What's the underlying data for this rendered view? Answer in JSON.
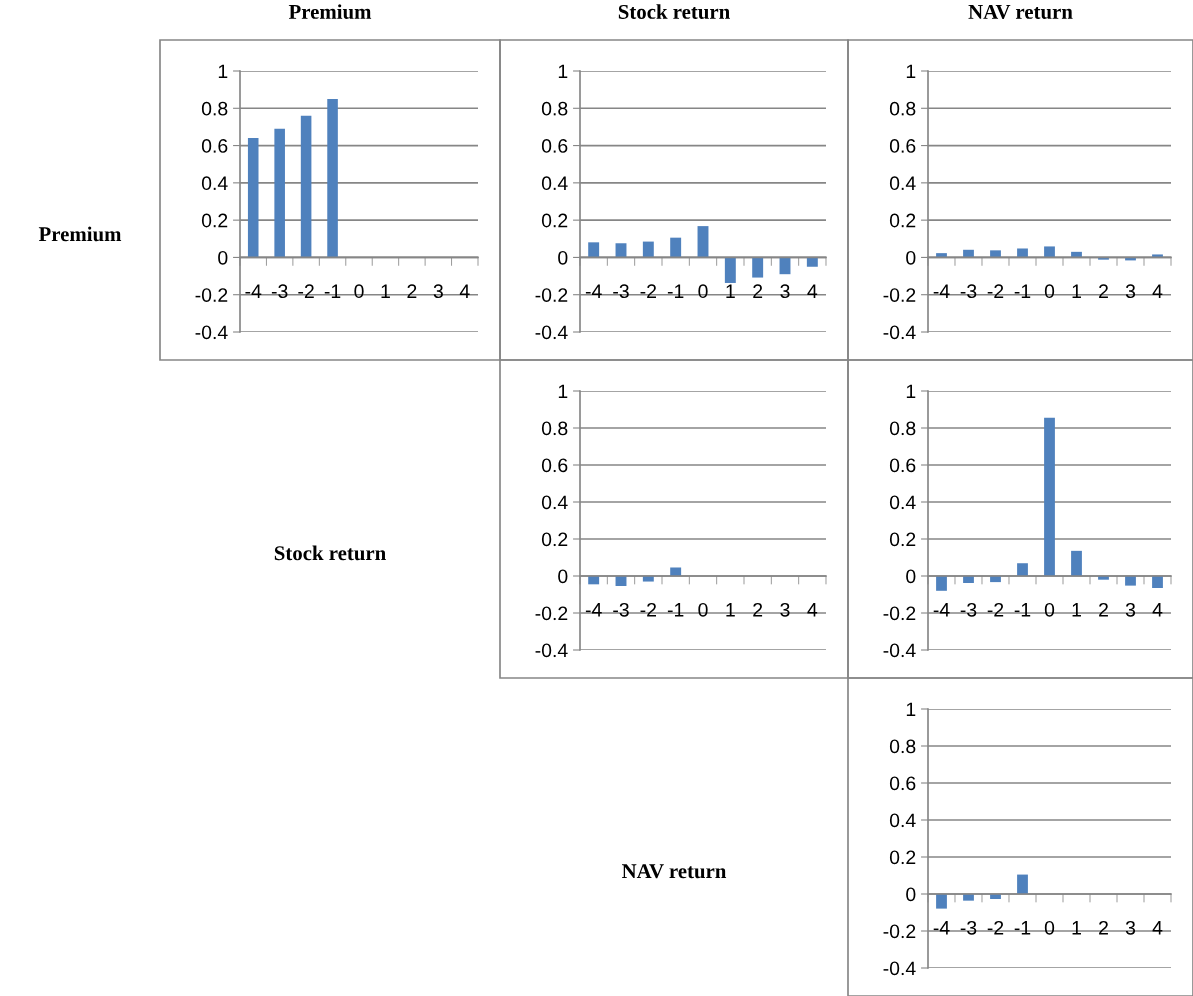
{
  "chart_data": [
    {
      "type": "bar",
      "title": "Premium",
      "ylabel": "Premium",
      "categories": [
        "-4",
        "-3",
        "-2",
        "-1",
        "0",
        "1",
        "2",
        "3",
        "4"
      ],
      "values": [
        0.64,
        0.69,
        0.76,
        0.85,
        null,
        null,
        null,
        null,
        null
      ],
      "color": "#4f81bd",
      "ylim": [
        -0.4,
        1
      ],
      "yticks": [
        -0.4,
        -0.2,
        0,
        0.2,
        0.4,
        0.6,
        0.8,
        1
      ],
      "grid": "y"
    },
    {
      "type": "bar",
      "title": "Stock return",
      "categories": [
        "-4",
        "-3",
        "-2",
        "-1",
        "0",
        "1",
        "2",
        "3",
        "4"
      ],
      "values": [
        0.081,
        0.076,
        0.085,
        0.106,
        0.168,
        -0.137,
        -0.108,
        -0.09,
        -0.05
      ],
      "color": "#4f81bd",
      "ylim": [
        -0.4,
        1
      ],
      "yticks": [
        -0.4,
        -0.2,
        0,
        0.2,
        0.4,
        0.6,
        0.8,
        1
      ],
      "grid": "y"
    },
    {
      "type": "bar",
      "title": "NAV return",
      "categories": [
        "-4",
        "-3",
        "-2",
        "-1",
        "0",
        "1",
        "2",
        "3",
        "4"
      ],
      "values": [
        0.023,
        0.041,
        0.038,
        0.048,
        0.059,
        0.03,
        -0.012,
        -0.016,
        0.016
      ],
      "color": "#4f81bd",
      "ylim": [
        -0.4,
        1
      ],
      "yticks": [
        -0.4,
        -0.2,
        0,
        0.2,
        0.4,
        0.6,
        0.8,
        1
      ],
      "grid": "y"
    },
    {
      "type": "bar",
      "ylabel": "Stock return",
      "categories": [
        "-4",
        "-3",
        "-2",
        "-1",
        "0",
        "1",
        "2",
        "3",
        "4"
      ],
      "values": [
        -0.045,
        -0.054,
        -0.03,
        0.046,
        null,
        null,
        null,
        null,
        null
      ],
      "color": "#4f81bd",
      "ylim": [
        -0.4,
        1
      ],
      "yticks": [
        -0.4,
        -0.2,
        0,
        0.2,
        0.4,
        0.6,
        0.8,
        1
      ],
      "grid": "y"
    },
    {
      "type": "bar",
      "categories": [
        "-4",
        "-3",
        "-2",
        "-1",
        "0",
        "1",
        "2",
        "3",
        "4"
      ],
      "values": [
        -0.08,
        -0.038,
        -0.033,
        0.069,
        0.856,
        0.136,
        -0.02,
        -0.052,
        -0.065
      ],
      "color": "#4f81bd",
      "ylim": [
        -0.4,
        1
      ],
      "yticks": [
        -0.4,
        -0.2,
        0,
        0.2,
        0.4,
        0.6,
        0.8,
        1
      ],
      "grid": "y"
    },
    {
      "type": "bar",
      "ylabel": "NAV return",
      "categories": [
        "-4",
        "-3",
        "-2",
        "-1",
        "0",
        "1",
        "2",
        "3",
        "4"
      ],
      "values": [
        -0.079,
        -0.036,
        -0.027,
        0.105,
        null,
        null,
        null,
        null,
        null
      ],
      "color": "#4f81bd",
      "ylim": [
        -0.4,
        1
      ],
      "yticks": [
        -0.4,
        -0.2,
        0,
        0.2,
        0.4,
        0.6,
        0.8,
        1
      ],
      "grid": "y"
    }
  ]
}
